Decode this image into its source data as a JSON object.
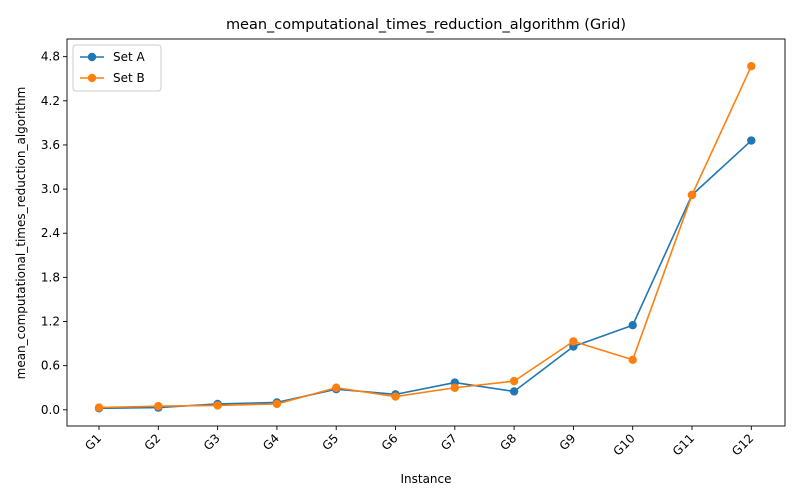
{
  "chart_data": {
    "type": "line",
    "title": "mean_computational_times_reduction_algorithm  (Grid)",
    "xlabel": "Instance",
    "ylabel": "mean_computational_times_reduction_algorithm",
    "categories": [
      "G1",
      "G2",
      "G3",
      "G4",
      "G5",
      "G6",
      "G7",
      "G8",
      "G9",
      "G10",
      "G11",
      "G12"
    ],
    "ylim": [
      -0.22,
      5.04
    ],
    "yticks": [
      0.0,
      0.6,
      1.2,
      1.8,
      2.4,
      3.0,
      3.6,
      4.2,
      4.8
    ],
    "ytick_labels": [
      "0.0",
      "0.6",
      "1.2",
      "1.8",
      "2.4",
      "3.0",
      "3.6",
      "4.2",
      "4.8"
    ],
    "grid": false,
    "legend_position": "top-left",
    "series": [
      {
        "name": "Set A",
        "color": "#1f77b4",
        "values": [
          0.02,
          0.03,
          0.08,
          0.1,
          0.28,
          0.21,
          0.37,
          0.25,
          0.86,
          1.15,
          2.92,
          3.66
        ]
      },
      {
        "name": "Set B",
        "color": "#ff7f0e",
        "values": [
          0.03,
          0.05,
          0.06,
          0.08,
          0.3,
          0.18,
          0.3,
          0.39,
          0.93,
          0.68,
          2.92,
          4.67
        ]
      }
    ]
  }
}
